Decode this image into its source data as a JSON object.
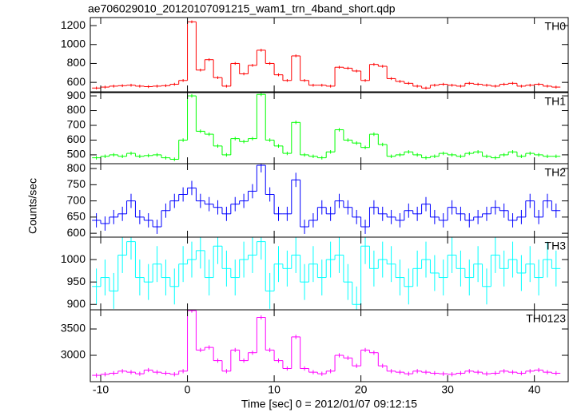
{
  "chart_data": {
    "type": "step",
    "title": "ae706029010_20120107091215_wam1_trn_4band_short.qdp",
    "x_label": "Time [sec] 0 = 2012/01/07 09:12:15",
    "y_label": "Counts/sec",
    "x": [
      -10.5,
      -9.5,
      -8.5,
      -7.5,
      -6.5,
      -5.5,
      -4.5,
      -3.5,
      -2.5,
      -1.5,
      -0.5,
      0.5,
      1.5,
      2.5,
      3.5,
      4.5,
      5.5,
      6.5,
      7.5,
      8.5,
      9.5,
      10.5,
      11.5,
      12.5,
      13.5,
      14.5,
      15.5,
      16.5,
      17.5,
      18.5,
      19.5,
      20.5,
      21.5,
      22.5,
      23.5,
      24.5,
      25.5,
      26.5,
      27.5,
      28.5,
      29.5,
      30.5,
      31.5,
      32.5,
      33.5,
      34.5,
      35.5,
      36.5,
      37.5,
      38.5,
      39.5,
      40.5,
      41.5,
      42.5
    ],
    "xlim": [
      -11.2,
      43.9
    ],
    "xticks": [
      -10,
      0,
      10,
      20,
      30,
      40
    ],
    "series": [
      {
        "name": "TH0",
        "color": "#ff0000",
        "ylim": [
          500,
          1285
        ],
        "yticks": [
          600,
          800,
          1000,
          1200
        ],
        "error": 15,
        "values": [
          540,
          550,
          560,
          565,
          570,
          560,
          555,
          560,
          565,
          580,
          620,
          1240,
          730,
          840,
          650,
          560,
          800,
          690,
          780,
          940,
          800,
          680,
          620,
          880,
          620,
          570,
          570,
          560,
          760,
          750,
          720,
          620,
          790,
          770,
          640,
          610,
          590,
          560,
          540,
          570,
          580,
          570,
          560,
          590,
          580,
          570,
          560,
          580,
          590,
          560,
          570,
          580,
          560,
          550
        ]
      },
      {
        "name": "TH1",
        "color": "#00ff00",
        "ylim": [
          440,
          922
        ],
        "yticks": [
          500,
          600,
          700,
          800,
          900
        ],
        "error": 12,
        "values": [
          480,
          490,
          500,
          490,
          510,
          490,
          495,
          500,
          480,
          470,
          600,
          900,
          660,
          640,
          560,
          500,
          610,
          590,
          610,
          910,
          600,
          560,
          510,
          720,
          500,
          490,
          480,
          520,
          670,
          600,
          580,
          550,
          640,
          570,
          490,
          500,
          520,
          500,
          480,
          490,
          510,
          500,
          490,
          510,
          520,
          490,
          480,
          500,
          520,
          490,
          510,
          500,
          490,
          490
        ]
      },
      {
        "name": "TH2",
        "color": "#0000ff",
        "ylim": [
          588,
          815
        ],
        "yticks": [
          600,
          650,
          700,
          750,
          800
        ],
        "error": 22,
        "values": [
          640,
          630,
          650,
          660,
          700,
          650,
          640,
          620,
          670,
          700,
          720,
          740,
          700,
          690,
          680,
          660,
          690,
          700,
          730,
          810,
          720,
          660,
          660,
          765,
          620,
          640,
          680,
          660,
          700,
          680,
          650,
          620,
          680,
          660,
          650,
          640,
          670,
          660,
          690,
          650,
          640,
          680,
          660,
          640,
          650,
          660,
          680,
          670,
          640,
          650,
          700,
          650,
          700,
          670
        ]
      },
      {
        "name": "TH3",
        "color": "#00ffff",
        "ylim": [
          888,
          1050
        ],
        "yticks": [
          900,
          950,
          1000
        ],
        "error": 40,
        "values": [
          940,
          960,
          930,
          1010,
          1040,
          960,
          950,
          990,
          960,
          940,
          990,
          1000,
          1020,
          960,
          1030,
          980,
          960,
          1000,
          1010,
          1040,
          930,
          990,
          980,
          1010,
          950,
          990,
          960,
          1000,
          1010,
          950,
          900,
          1030,
          980,
          1000,
          990,
          960,
          940,
          980,
          1000,
          970,
          960,
          1010,
          980,
          960,
          990,
          940,
          1010,
          980,
          1000,
          970,
          990,
          960,
          1000,
          980
        ]
      },
      {
        "name": "TH0123",
        "color": "#ff00ff",
        "ylim": [
          2500,
          3864
        ],
        "yticks": [
          3000,
          3500
        ],
        "error": 40,
        "values": [
          2620,
          2640,
          2660,
          2700,
          2680,
          2650,
          2720,
          2680,
          2660,
          2640,
          2700,
          3850,
          3100,
          3150,
          2900,
          2700,
          3100,
          2900,
          3050,
          3720,
          3100,
          2900,
          2750,
          3350,
          2750,
          2680,
          2650,
          2700,
          3000,
          2950,
          2800,
          3100,
          3050,
          2800,
          2700,
          2680,
          2650,
          2700,
          2680,
          2660,
          2650,
          2640,
          2660,
          2700,
          2680,
          2650,
          2660,
          2700,
          2680,
          2660,
          2700,
          2720,
          2680,
          2660
        ]
      }
    ]
  }
}
